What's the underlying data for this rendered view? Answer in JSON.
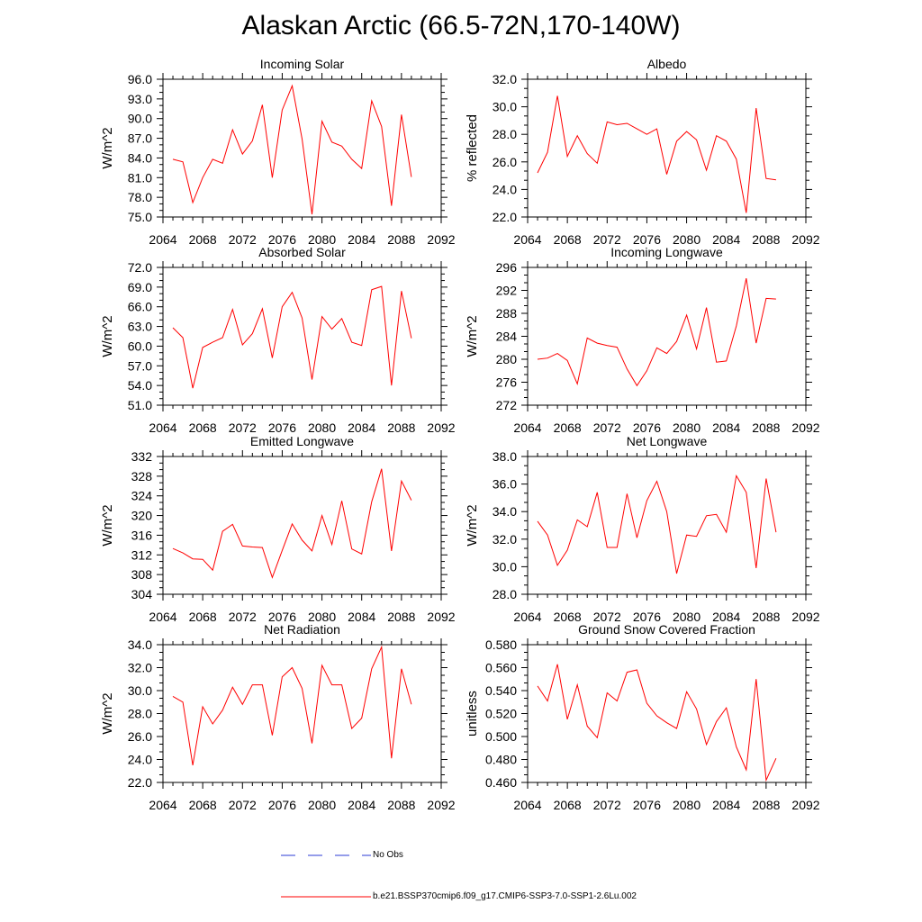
{
  "title": "Alaskan Arctic (66.5-72N,170-140W)",
  "legend": {
    "obs_label": "No Obs",
    "model_label": "b.e21.BSSP370cmip6.f09_g17.CMIP6-SSP3-7.0-SSP1-2.6Lu.002",
    "obs_color": "#2b3bd6",
    "model_color": "#ff0000"
  },
  "chart_data": [
    {
      "type": "line",
      "title": "Incoming Solar",
      "ylabel": "W/m^2",
      "xlim": [
        2064,
        2092
      ],
      "ylim": [
        75.0,
        96.0
      ],
      "xticks": [
        2064,
        2068,
        2072,
        2076,
        2080,
        2084,
        2088,
        2092
      ],
      "yticks": [
        "75.0",
        "78.0",
        "81.0",
        "84.0",
        "87.0",
        "90.0",
        "93.0",
        "96.0"
      ],
      "x": [
        2065,
        2066,
        2067,
        2068,
        2069,
        2070,
        2071,
        2072,
        2073,
        2074,
        2075,
        2076,
        2077,
        2078,
        2079,
        2080,
        2081,
        2082,
        2083,
        2084,
        2085,
        2086,
        2087,
        2088,
        2089
      ],
      "values": [
        83.8,
        83.4,
        77.2,
        81.0,
        83.8,
        83.2,
        88.3,
        84.6,
        86.6,
        92.1,
        81.0,
        91.3,
        95.0,
        86.9,
        75.4,
        89.6,
        86.4,
        85.8,
        83.8,
        82.4,
        92.7,
        88.8,
        76.7,
        90.6,
        81.1
      ],
      "series_color": "#ff0000"
    },
    {
      "type": "line",
      "title": "Albedo",
      "ylabel": "% reflected",
      "xlim": [
        2064,
        2092
      ],
      "ylim": [
        22.0,
        32.0
      ],
      "xticks": [
        2064,
        2068,
        2072,
        2076,
        2080,
        2084,
        2088,
        2092
      ],
      "yticks": [
        "22.0",
        "24.0",
        "26.0",
        "28.0",
        "30.0",
        "32.0"
      ],
      "x": [
        2065,
        2066,
        2067,
        2068,
        2069,
        2070,
        2071,
        2072,
        2073,
        2074,
        2075,
        2076,
        2077,
        2078,
        2079,
        2080,
        2081,
        2082,
        2083,
        2084,
        2085,
        2086,
        2087,
        2088,
        2089
      ],
      "values": [
        25.2,
        26.7,
        30.8,
        26.4,
        27.9,
        26.6,
        25.9,
        28.9,
        28.7,
        28.8,
        28.4,
        28.0,
        28.4,
        25.1,
        27.5,
        28.2,
        27.6,
        25.4,
        27.9,
        27.5,
        26.2,
        22.3,
        29.9,
        24.8,
        24.7
      ],
      "series_color": "#ff0000"
    },
    {
      "type": "line",
      "title": "Absorbed Solar",
      "ylabel": "W/m^2",
      "xlim": [
        2064,
        2092
      ],
      "ylim": [
        51.0,
        72.0
      ],
      "xticks": [
        2064,
        2068,
        2072,
        2076,
        2080,
        2084,
        2088,
        2092
      ],
      "yticks": [
        "51.0",
        "54.0",
        "57.0",
        "60.0",
        "63.0",
        "66.0",
        "69.0",
        "72.0"
      ],
      "x": [
        2065,
        2066,
        2067,
        2068,
        2069,
        2070,
        2071,
        2072,
        2073,
        2074,
        2075,
        2076,
        2077,
        2078,
        2079,
        2080,
        2081,
        2082,
        2083,
        2084,
        2085,
        2086,
        2087,
        2088,
        2089
      ],
      "values": [
        62.8,
        61.3,
        53.6,
        59.8,
        60.6,
        61.3,
        65.6,
        60.2,
        61.9,
        65.7,
        58.2,
        66.0,
        68.2,
        64.3,
        54.9,
        64.5,
        62.6,
        64.2,
        60.6,
        60.1,
        68.6,
        69.1,
        54.0,
        68.4,
        61.2
      ],
      "series_color": "#ff0000"
    },
    {
      "type": "line",
      "title": "Incoming Longwave",
      "ylabel": "W/m^2",
      "xlim": [
        2064,
        2092
      ],
      "ylim": [
        272,
        296
      ],
      "xticks": [
        2064,
        2068,
        2072,
        2076,
        2080,
        2084,
        2088,
        2092
      ],
      "yticks": [
        "272",
        "276",
        "280",
        "284",
        "288",
        "292",
        "296"
      ],
      "x": [
        2065,
        2066,
        2067,
        2068,
        2069,
        2070,
        2071,
        2072,
        2073,
        2074,
        2075,
        2076,
        2077,
        2078,
        2079,
        2080,
        2081,
        2082,
        2083,
        2084,
        2085,
        2086,
        2087,
        2088,
        2089
      ],
      "values": [
        280.0,
        280.2,
        281.0,
        279.8,
        275.7,
        283.7,
        282.8,
        282.4,
        282.1,
        278.3,
        275.4,
        278.0,
        282.0,
        281.0,
        283.1,
        287.7,
        281.8,
        289.0,
        279.5,
        279.7,
        285.8,
        294.1,
        282.8,
        290.6,
        290.5
      ],
      "series_color": "#ff0000"
    },
    {
      "type": "line",
      "title": "Emitted Longwave",
      "ylabel": "W/m^2",
      "xlim": [
        2064,
        2092
      ],
      "ylim": [
        304,
        332
      ],
      "xticks": [
        2064,
        2068,
        2072,
        2076,
        2080,
        2084,
        2088,
        2092
      ],
      "yticks": [
        "304",
        "308",
        "312",
        "316",
        "320",
        "324",
        "328",
        "332"
      ],
      "x": [
        2065,
        2066,
        2067,
        2068,
        2069,
        2070,
        2071,
        2072,
        2073,
        2074,
        2075,
        2076,
        2077,
        2078,
        2079,
        2080,
        2081,
        2082,
        2083,
        2084,
        2085,
        2086,
        2087,
        2088,
        2089
      ],
      "values": [
        313.3,
        312.4,
        311.2,
        311.1,
        308.9,
        316.8,
        318.2,
        313.8,
        313.6,
        313.5,
        307.4,
        312.9,
        318.3,
        315.0,
        312.8,
        320.0,
        314.1,
        323.0,
        313.2,
        312.2,
        322.8,
        329.5,
        312.8,
        327.0,
        323.1
      ],
      "series_color": "#ff0000"
    },
    {
      "type": "line",
      "title": "Net Longwave",
      "ylabel": "W/m^2",
      "xlim": [
        2064,
        2092
      ],
      "ylim": [
        28.0,
        38.0
      ],
      "xticks": [
        2064,
        2068,
        2072,
        2076,
        2080,
        2084,
        2088,
        2092
      ],
      "yticks": [
        "28.0",
        "30.0",
        "32.0",
        "34.0",
        "36.0",
        "38.0"
      ],
      "x": [
        2065,
        2066,
        2067,
        2068,
        2069,
        2070,
        2071,
        2072,
        2073,
        2074,
        2075,
        2076,
        2077,
        2078,
        2079,
        2080,
        2081,
        2082,
        2083,
        2084,
        2085,
        2086,
        2087,
        2088,
        2089
      ],
      "values": [
        33.3,
        32.3,
        30.1,
        31.2,
        33.4,
        32.9,
        35.4,
        31.4,
        31.4,
        35.3,
        32.1,
        34.8,
        36.2,
        34.0,
        29.5,
        32.3,
        32.2,
        33.7,
        33.8,
        32.5,
        36.6,
        35.4,
        29.9,
        36.4,
        32.5
      ],
      "series_color": "#ff0000"
    },
    {
      "type": "line",
      "title": "Net Radiation",
      "ylabel": "W/m^2",
      "xlim": [
        2064,
        2092
      ],
      "ylim": [
        22.0,
        34.0
      ],
      "xticks": [
        2064,
        2068,
        2072,
        2076,
        2080,
        2084,
        2088,
        2092
      ],
      "yticks": [
        "22.0",
        "24.0",
        "26.0",
        "28.0",
        "30.0",
        "32.0",
        "34.0"
      ],
      "x": [
        2065,
        2066,
        2067,
        2068,
        2069,
        2070,
        2071,
        2072,
        2073,
        2074,
        2075,
        2076,
        2077,
        2078,
        2079,
        2080,
        2081,
        2082,
        2083,
        2084,
        2085,
        2086,
        2087,
        2088,
        2089
      ],
      "values": [
        29.5,
        29.0,
        23.5,
        28.6,
        27.1,
        28.3,
        30.3,
        28.8,
        30.5,
        30.5,
        26.1,
        31.2,
        32.0,
        30.2,
        25.4,
        32.2,
        30.5,
        30.5,
        26.7,
        27.6,
        31.9,
        33.8,
        24.1,
        31.9,
        28.8
      ],
      "series_color": "#ff0000"
    },
    {
      "type": "line",
      "title": "Ground Snow Covered Fraction",
      "ylabel": "unitless",
      "xlim": [
        2064,
        2092
      ],
      "ylim": [
        0.46,
        0.58
      ],
      "xticks": [
        2064,
        2068,
        2072,
        2076,
        2080,
        2084,
        2088,
        2092
      ],
      "yticks": [
        "0.460",
        "0.480",
        "0.500",
        "0.520",
        "0.540",
        "0.560",
        "0.580"
      ],
      "x": [
        2065,
        2066,
        2067,
        2068,
        2069,
        2070,
        2071,
        2072,
        2073,
        2074,
        2075,
        2076,
        2077,
        2078,
        2079,
        2080,
        2081,
        2082,
        2083,
        2084,
        2085,
        2086,
        2087,
        2088,
        2089
      ],
      "values": [
        0.544,
        0.531,
        0.563,
        0.515,
        0.545,
        0.509,
        0.499,
        0.538,
        0.531,
        0.556,
        0.558,
        0.529,
        0.518,
        0.512,
        0.507,
        0.539,
        0.524,
        0.493,
        0.513,
        0.525,
        0.491,
        0.471,
        0.55,
        0.462,
        0.481
      ],
      "series_color": "#ff0000"
    }
  ]
}
